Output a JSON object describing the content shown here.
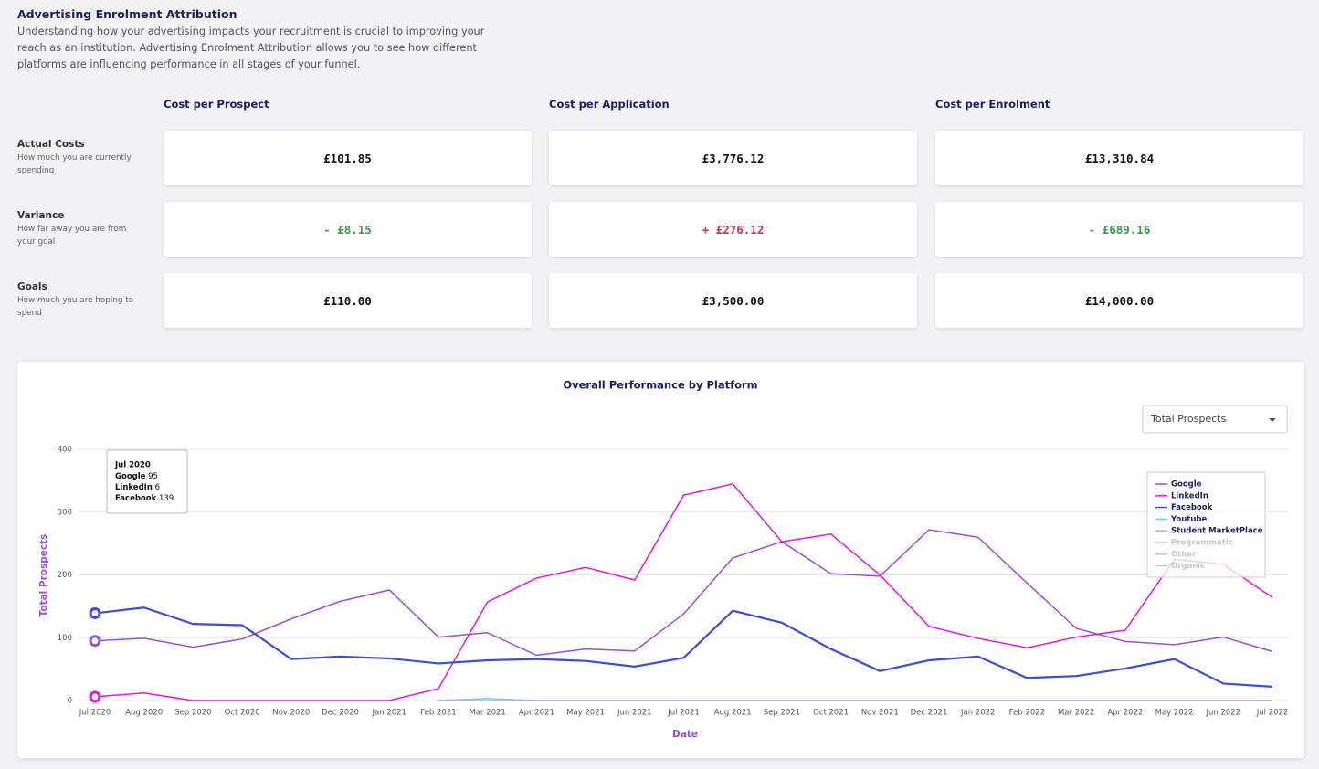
{
  "header": {
    "title": "Advertising Enrolment Attribution",
    "description": "Understanding how your advertising impacts your recruitment is crucial to improving your reach as an institution. Advertising Enrolment Attribution allows you to see how different platforms are influencing performance in all stages of your funnel."
  },
  "metrics": {
    "columns": [
      "Cost per Prospect",
      "Cost per Application",
      "Cost per Enrolment"
    ],
    "rows": [
      {
        "label": "Actual Costs",
        "description": "How much you are currently spending",
        "values": [
          "£101.85",
          "£3,776.12",
          "£13,310.84"
        ],
        "tones": [
          "neutral",
          "neutral",
          "neutral"
        ]
      },
      {
        "label": "Variance",
        "description": "How far away you are from your goal",
        "values": [
          "- £8.15",
          "+ £276.12",
          "- £689.16"
        ],
        "tones": [
          "good",
          "bad",
          "good"
        ]
      },
      {
        "label": "Goals",
        "description": "How much you are hoping to spend",
        "values": [
          "£110.00",
          "£3,500.00",
          "£14,000.00"
        ],
        "tones": [
          "neutral",
          "neutral",
          "neutral"
        ]
      }
    ]
  },
  "controls": {
    "dropdown": "Total Prospects"
  },
  "chart_data": {
    "type": "line",
    "title": "Overall Performance by Platform",
    "x_label": "Date",
    "y_label": "Total Prospects",
    "categories": [
      "Jul 2020",
      "Aug 2020",
      "Sep 2020",
      "Oct 2020",
      "Nov 2020",
      "Dec 2020",
      "Jan 2021",
      "Feb 2021",
      "Mar 2021",
      "Apr 2021",
      "May 2021",
      "Jun 2021",
      "Jul 2021",
      "Aug 2021",
      "Sep 2021",
      "Oct 2021",
      "Nov 2021",
      "Dec 2021",
      "Jan 2022",
      "Feb 2022",
      "Mar 2022",
      "Apr 2022",
      "May 2022",
      "Jun 2022",
      "Jul 2022"
    ],
    "ylim": [
      0,
      400
    ],
    "yticks": [
      0,
      100,
      200,
      300,
      400
    ],
    "grid": true,
    "legend": "top-right",
    "series": [
      {
        "name": "Google",
        "color": "#9d4edd",
        "values": [
          95,
          99,
          85,
          98,
          130,
          158,
          176,
          101,
          108,
          72,
          82,
          79,
          138,
          227,
          253,
          202,
          198,
          272,
          260,
          187,
          115,
          94,
          89,
          101,
          78
        ]
      },
      {
        "name": "LinkedIn",
        "color": "#e817d8",
        "values": [
          6,
          12,
          0,
          0,
          0,
          0,
          0,
          19,
          157,
          195,
          212,
          192,
          327,
          345,
          253,
          265,
          200,
          118,
          99,
          84,
          101,
          112,
          225,
          217,
          164
        ]
      },
      {
        "name": "Facebook",
        "color": "#3a4fd6",
        "values": [
          139,
          148,
          122,
          120,
          66,
          70,
          67,
          59,
          64,
          66,
          63,
          54,
          68,
          143,
          124,
          82,
          47,
          64,
          70,
          36,
          39,
          51,
          66,
          27,
          22
        ]
      },
      {
        "name": "Youtube",
        "color": "#5ee0d4",
        "values": [
          null,
          null,
          null,
          null,
          null,
          null,
          null,
          0,
          3,
          0,
          0,
          0,
          0,
          0,
          0,
          0,
          0,
          0,
          0,
          0,
          0,
          0,
          0,
          0,
          0
        ]
      },
      {
        "name": "Student MarketPlace",
        "color": "#b9a6e8",
        "values": [
          null,
          null,
          null,
          null,
          null,
          null,
          null,
          0,
          0,
          0,
          0,
          0,
          0,
          0,
          0,
          0,
          0,
          0,
          0,
          0,
          0,
          0,
          0,
          0,
          0
        ]
      },
      {
        "name": "Programmatic",
        "color": "#cccccc",
        "hidden": true
      },
      {
        "name": "Other",
        "color": "#cccccc",
        "hidden": true
      },
      {
        "name": "Organic",
        "color": "#cccccc",
        "hidden": true
      }
    ],
    "tooltip": {
      "index": 0,
      "series": [
        0,
        1,
        2
      ]
    }
  }
}
